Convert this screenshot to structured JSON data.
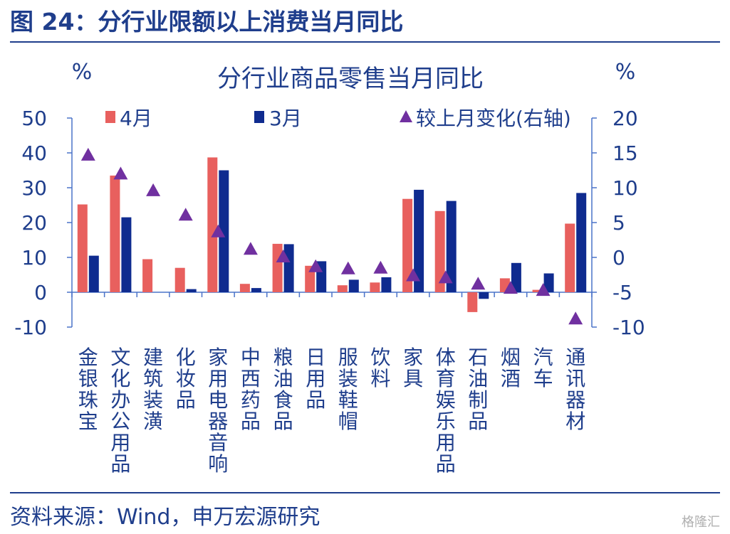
{
  "figure_title": "图 24：分行业限额以上消费当月同比",
  "source": "资料来源：Wind，申万宏源研究",
  "watermark": "格隆汇",
  "colors": {
    "title": "#1F3E8C",
    "bar_april": "#E8605E",
    "bar_march": "#0F2B8F",
    "marker": "#7030A0",
    "axis": "#4A73C9",
    "text": "#1F3E8C"
  },
  "chart_data": {
    "type": "bar",
    "title": "分行业商品零售当月同比",
    "left_unit": "%",
    "right_unit": "%",
    "categories": [
      "金银珠宝",
      "文化办公用品",
      "建筑装潢",
      "化妆品",
      "家用电器音响",
      "中西药品",
      "粮油食品",
      "日用品",
      "服装鞋帽",
      "饮料",
      "家具",
      "体育娱乐用品",
      "石油制品",
      "烟酒",
      "汽车",
      "通讯器材"
    ],
    "series": [
      {
        "name": "4月",
        "type": "bar",
        "axis": "left",
        "color": "#E8605E",
        "values": [
          25.2,
          33.5,
          9.5,
          7.0,
          38.7,
          2.4,
          13.9,
          7.6,
          2.0,
          2.8,
          26.8,
          23.3,
          -5.7,
          4.0,
          0.7,
          19.7
        ]
      },
      {
        "name": "3月",
        "type": "bar",
        "axis": "left",
        "color": "#0F2B8F",
        "values": [
          10.5,
          21.5,
          0.0,
          0.9,
          35.0,
          1.2,
          13.8,
          8.9,
          3.6,
          4.3,
          29.4,
          26.2,
          -1.9,
          8.4,
          5.4,
          28.5
        ]
      },
      {
        "name": "较上月变化(右轴)",
        "type": "scatter",
        "axis": "right",
        "color": "#7030A0",
        "values": [
          14.7,
          12.0,
          9.6,
          6.1,
          3.7,
          1.2,
          0.1,
          -1.3,
          -1.6,
          -1.5,
          -2.6,
          -2.9,
          -3.8,
          -4.4,
          -4.7,
          -8.8
        ]
      }
    ],
    "y_left": {
      "min": -10,
      "max": 50,
      "step": 10,
      "ticks": [
        "50",
        "40",
        "30",
        "20",
        "10",
        "0",
        "-10"
      ]
    },
    "y_right": {
      "min": -10,
      "max": 20,
      "step": 5,
      "ticks": [
        "20",
        "15",
        "10",
        "5",
        "0",
        "-5",
        "-10"
      ]
    },
    "legend": {
      "position": "top",
      "labels": [
        "4月",
        "3月",
        "较上月变化(右轴)"
      ]
    },
    "grid": false
  }
}
